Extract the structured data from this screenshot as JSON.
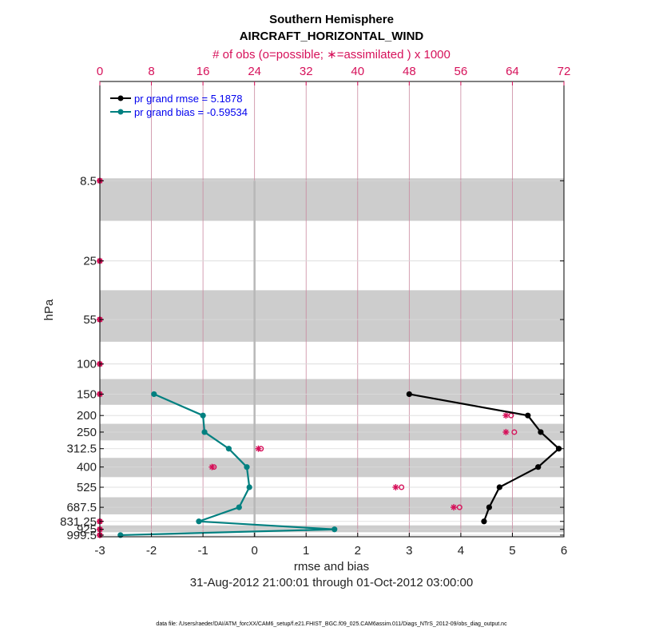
{
  "chart_data": {
    "type": "line",
    "title": "Southern Hemisphere",
    "subtitle": "AIRCRAFT_HORIZONTAL_WIND",
    "top_axis_label": "# of obs (o=possible; ∗=assimilated ) x 1000",
    "xlabel": "rmse and bias",
    "ylabel": "hPa",
    "date_range": "31-Aug-2012 21:00:01 through 01-Oct-2012 03:00:00",
    "footnote": "data file: /Users/raeder/DAI/ATM_forcXX/CAM6_setup/f.e21.FHIST_BGC.f09_025.CAM6assim.011/Diags_NTrS_2012-09/obs_diag_output.nc",
    "xlim": [
      -3,
      6
    ],
    "x_ticks": [
      "-3",
      "-2",
      "-1",
      "0",
      "1",
      "2",
      "3",
      "4",
      "5",
      "6"
    ],
    "top_xlim": [
      0,
      72
    ],
    "top_ticks": [
      "0",
      "8",
      "16",
      "24",
      "32",
      "40",
      "48",
      "56",
      "64",
      "72"
    ],
    "levels": [
      8.5,
      25,
      55,
      100,
      150,
      200,
      250,
      312.5,
      400,
      525,
      687.5,
      831.25,
      925,
      999.5
    ],
    "level_labels": [
      "8.5",
      "25",
      "55",
      "100",
      "150",
      "200",
      "250",
      "312.5",
      "400",
      "525",
      "687.5",
      "831.25",
      "925",
      "999.5"
    ],
    "series": [
      {
        "name": "pr grand rmse = 5.1878",
        "color": "#000000",
        "levels": [
          150,
          200,
          250,
          312.5,
          400,
          525,
          687.5,
          831.25
        ],
        "values": [
          3.0,
          5.3,
          5.55,
          5.9,
          5.5,
          4.75,
          4.55,
          4.45
        ]
      },
      {
        "name": "pr grand bias = -0.59534",
        "color": "#008080",
        "levels": [
          150,
          200,
          250,
          312.5,
          400,
          525,
          687.5,
          831.25,
          925,
          999.5
        ],
        "values": [
          -1.95,
          -1.0,
          -0.97,
          -0.5,
          -0.15,
          -0.1,
          -0.3,
          -1.08,
          1.55,
          -2.6
        ]
      }
    ],
    "obs_counts": {
      "color": "#d6115a",
      "levels": [
        8.5,
        25,
        55,
        100,
        150,
        200,
        250,
        312.5,
        400,
        525,
        687.5,
        831.25,
        925,
        999.5
      ],
      "possible": [
        0,
        0,
        0,
        0,
        0,
        63.8,
        64.3,
        25.0,
        17.7,
        46.8,
        55.8,
        0,
        0,
        0
      ],
      "assimilated": [
        0,
        0,
        0,
        0,
        0,
        63.0,
        63.0,
        24.6,
        17.4,
        45.9,
        54.9,
        0,
        0,
        0
      ]
    }
  }
}
